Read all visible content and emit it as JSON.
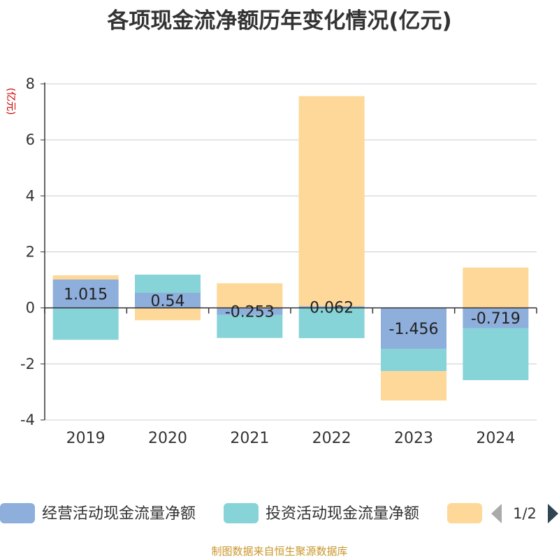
{
  "chart_data": {
    "type": "bar",
    "stacked": true,
    "title": "各项现金流净额历年变化情况(亿元)",
    "ylabel": "(亿元)",
    "categories": [
      "2019",
      "2020",
      "2021",
      "2022",
      "2023",
      "2024"
    ],
    "ylim": [
      -4,
      8
    ],
    "yticks": [
      -4,
      -2,
      0,
      2,
      4,
      6,
      8
    ],
    "grid": true,
    "legend_position": "bottom",
    "series": [
      {
        "name": "经营活动现金流量净额",
        "color": "#8eaedb",
        "values": [
          1.015,
          0.54,
          -0.253,
          0.062,
          -1.456,
          -0.719
        ],
        "labels": [
          "1.015",
          "0.54",
          "-0.253",
          "0.062",
          "-1.456",
          "-0.719"
        ]
      },
      {
        "name": "投资活动现金流量净额",
        "color": "#87d4d8",
        "values": [
          -1.14,
          0.65,
          -0.82,
          -1.08,
          -0.8,
          -1.86
        ]
      },
      {
        "name": "",
        "color": "#fdd898",
        "values": [
          0.15,
          -0.44,
          0.88,
          7.5,
          -1.05,
          1.44
        ]
      }
    ]
  },
  "legend": {
    "page": "1/2"
  },
  "source": "制图数据来自恒生聚源数据库"
}
